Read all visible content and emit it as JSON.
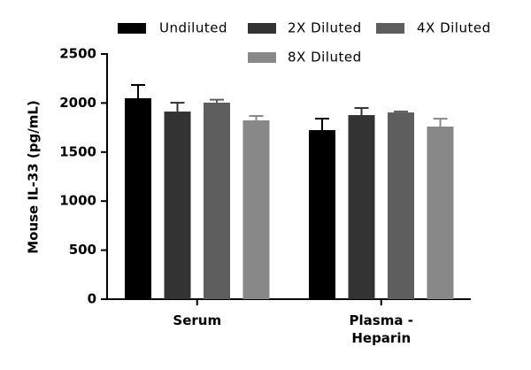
{
  "chart_data": {
    "type": "bar",
    "y_label": "Mouse IL-33 (pg/mL)",
    "categories": [
      "Serum",
      "Plasma - Heparin"
    ],
    "series": [
      {
        "name": "Undiluted",
        "color": "#000000",
        "values": [
          2049,
          1724
        ],
        "errors": [
          135,
          117
        ]
      },
      {
        "name": "2X Diluted",
        "color": "#333333",
        "values": [
          1913,
          1877
        ],
        "errors": [
          90,
          72
        ]
      },
      {
        "name": "4X Diluted",
        "color": "#5e5e5e",
        "values": [
          2004,
          1904
        ],
        "errors": [
          30,
          10
        ]
      },
      {
        "name": "8X Diluted",
        "color": "#888888",
        "values": [
          1823,
          1760
        ],
        "errors": [
          45,
          80
        ]
      }
    ],
    "ylim": [
      0,
      2500
    ],
    "yticks": [
      0,
      500,
      1000,
      1500,
      2000,
      2500
    ],
    "grid": false
  }
}
